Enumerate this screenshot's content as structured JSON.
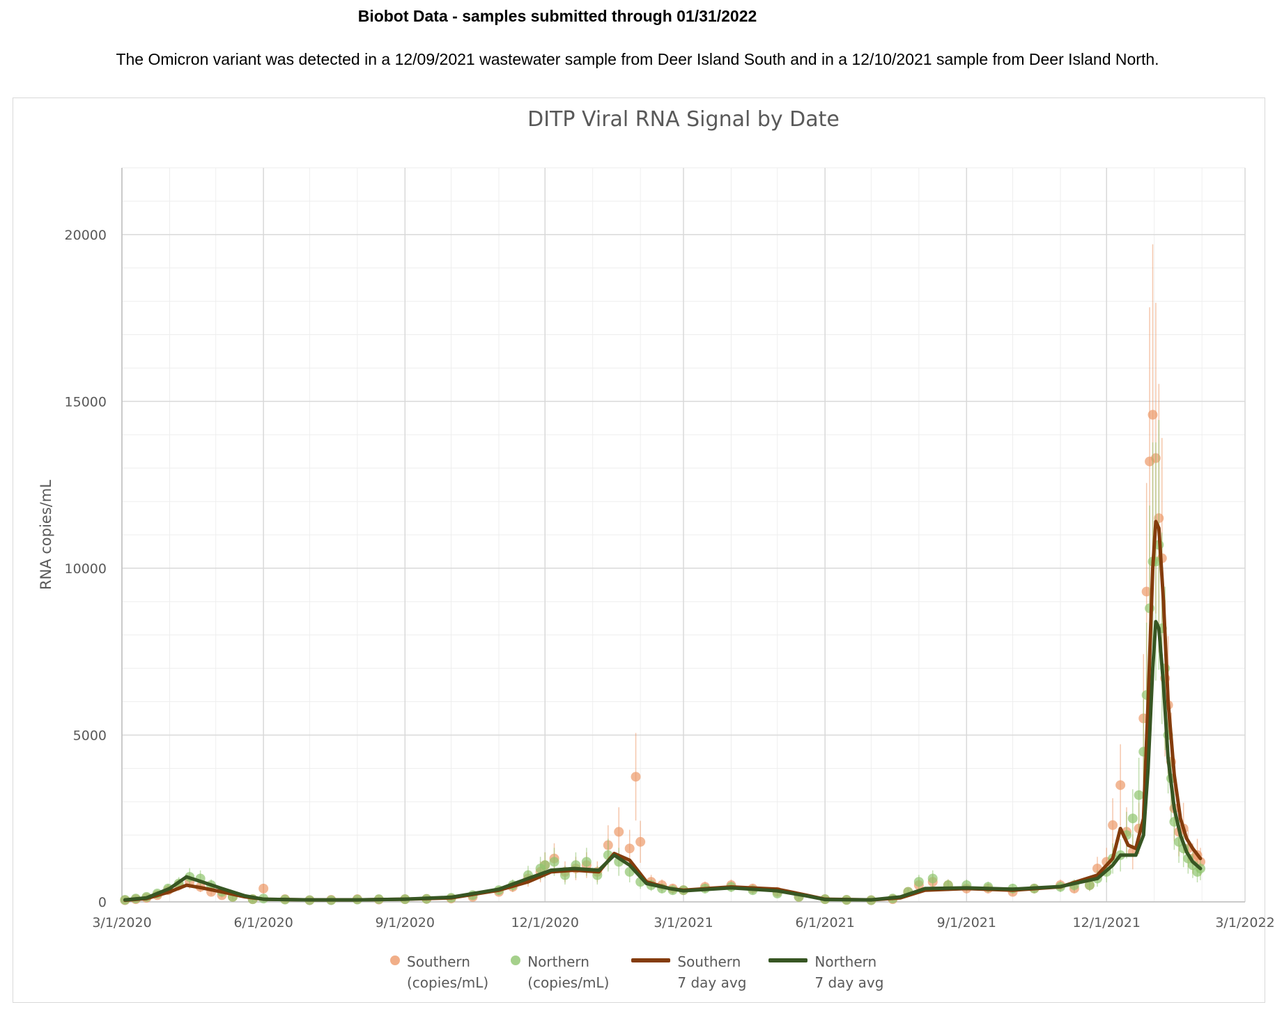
{
  "header": {
    "title": "Biobot Data - samples submitted through 01/31/2022",
    "note": "The Omicron variant was detected in a 12/09/2021 wastewater sample from Deer Island South and in a 12/10/2021 sample from Deer Island North."
  },
  "colors": {
    "southern_points": "#ed9a6a",
    "northern_points": "#8fc46e",
    "southern_avg": "#843c0c",
    "northern_avg": "#375623",
    "grid": "#d9d9d9",
    "axis_text": "#595959"
  },
  "legend": {
    "southern_points": {
      "line1": "Southern",
      "line2": "(copies/mL)"
    },
    "northern_points": {
      "line1": "Northern",
      "line2": "(copies/mL)"
    },
    "southern_avg": {
      "line1": "Southern",
      "line2": "7 day avg"
    },
    "northern_avg": {
      "line1": "Northern",
      "line2": "7 day avg"
    }
  },
  "chart_data": {
    "type": "scatter",
    "title": "DITP Viral RNA Signal by Date",
    "xlabel": "",
    "ylabel": "RNA copies/mL",
    "xlim": [
      "2020-03-01",
      "2022-03-01"
    ],
    "ylim": [
      0,
      22000
    ],
    "x_ticks": [
      "3/1/2020",
      "6/1/2020",
      "9/1/2020",
      "12/1/2020",
      "3/1/2021",
      "6/1/2021",
      "9/1/2021",
      "12/1/2021",
      "3/1/2022"
    ],
    "x_tick_dates": [
      "2020-03-01",
      "2020-06-01",
      "2020-09-01",
      "2020-12-01",
      "2021-03-01",
      "2021-06-01",
      "2021-09-01",
      "2021-12-01",
      "2022-03-01"
    ],
    "y_ticks": [
      0,
      5000,
      10000,
      15000,
      20000
    ],
    "grid": true,
    "legend_position": "bottom",
    "series": [
      {
        "name": "Southern (copies/mL)",
        "kind": "points",
        "x": [
          "2020-03-03",
          "2020-03-10",
          "2020-03-17",
          "2020-03-24",
          "2020-03-31",
          "2020-04-07",
          "2020-04-14",
          "2020-04-21",
          "2020-04-28",
          "2020-05-05",
          "2020-05-12",
          "2020-05-25",
          "2020-06-01",
          "2020-06-15",
          "2020-07-01",
          "2020-07-15",
          "2020-08-01",
          "2020-08-15",
          "2020-09-01",
          "2020-09-15",
          "2020-10-01",
          "2020-10-15",
          "2020-11-01",
          "2020-11-10",
          "2020-11-20",
          "2020-11-28",
          "2020-12-01",
          "2020-12-07",
          "2020-12-14",
          "2020-12-21",
          "2020-12-28",
          "2021-01-04",
          "2021-01-11",
          "2021-01-18",
          "2021-01-25",
          "2021-01-29",
          "2021-02-01",
          "2021-02-08",
          "2021-02-15",
          "2021-02-22",
          "2021-03-01",
          "2021-03-15",
          "2021-04-01",
          "2021-04-15",
          "2021-05-01",
          "2021-05-15",
          "2021-06-01",
          "2021-06-15",
          "2021-07-01",
          "2021-07-15",
          "2021-07-25",
          "2021-08-01",
          "2021-08-10",
          "2021-08-20",
          "2021-09-01",
          "2021-09-15",
          "2021-10-01",
          "2021-10-15",
          "2021-11-01",
          "2021-11-10",
          "2021-11-20",
          "2021-11-25",
          "2021-12-01",
          "2021-12-05",
          "2021-12-10",
          "2021-12-14",
          "2021-12-18",
          "2021-12-22",
          "2021-12-25",
          "2021-12-27",
          "2021-12-29",
          "2021-12-31",
          "2022-01-02",
          "2022-01-04",
          "2022-01-06",
          "2022-01-08",
          "2022-01-10",
          "2022-01-12",
          "2022-01-14",
          "2022-01-17",
          "2022-01-20",
          "2022-01-23",
          "2022-01-26",
          "2022-01-29",
          "2022-01-31"
        ],
        "y": [
          50,
          80,
          120,
          200,
          350,
          500,
          600,
          450,
          300,
          200,
          150,
          80,
          400,
          80,
          50,
          60,
          80,
          70,
          80,
          90,
          100,
          150,
          300,
          450,
          700,
          900,
          1100,
          1300,
          900,
          1000,
          1100,
          900,
          1700,
          2100,
          1600,
          3750,
          1800,
          600,
          500,
          400,
          350,
          450,
          500,
          400,
          300,
          150,
          80,
          60,
          50,
          80,
          300,
          500,
          600,
          500,
          400,
          400,
          300,
          400,
          500,
          400,
          500,
          1000,
          1200,
          2300,
          3500,
          2100,
          1500,
          2200,
          5500,
          9300,
          13200,
          14600,
          13300,
          11500,
          10300,
          6700,
          5900,
          4200,
          2800,
          2100,
          2200,
          1600,
          1300,
          1400,
          1200
        ]
      },
      {
        "name": "Northern (copies/mL)",
        "kind": "points",
        "x": [
          "2020-03-03",
          "2020-03-10",
          "2020-03-17",
          "2020-03-24",
          "2020-03-31",
          "2020-04-07",
          "2020-04-14",
          "2020-04-21",
          "2020-04-28",
          "2020-05-05",
          "2020-05-12",
          "2020-05-25",
          "2020-06-01",
          "2020-06-15",
          "2020-07-01",
          "2020-07-15",
          "2020-08-01",
          "2020-08-15",
          "2020-09-01",
          "2020-09-15",
          "2020-10-01",
          "2020-10-15",
          "2020-11-01",
          "2020-11-10",
          "2020-11-20",
          "2020-11-28",
          "2020-12-01",
          "2020-12-07",
          "2020-12-14",
          "2020-12-21",
          "2020-12-28",
          "2021-01-04",
          "2021-01-11",
          "2021-01-18",
          "2021-01-25",
          "2021-02-01",
          "2021-02-08",
          "2021-02-15",
          "2021-02-22",
          "2021-03-01",
          "2021-03-15",
          "2021-04-01",
          "2021-04-15",
          "2021-05-01",
          "2021-05-15",
          "2021-06-01",
          "2021-06-15",
          "2021-07-01",
          "2021-07-15",
          "2021-07-25",
          "2021-08-01",
          "2021-08-10",
          "2021-08-20",
          "2021-09-01",
          "2021-09-15",
          "2021-10-01",
          "2021-10-15",
          "2021-11-01",
          "2021-11-10",
          "2021-11-20",
          "2021-11-25",
          "2021-12-01",
          "2021-12-05",
          "2021-12-10",
          "2021-12-14",
          "2021-12-18",
          "2021-12-22",
          "2021-12-25",
          "2021-12-27",
          "2021-12-29",
          "2021-12-31",
          "2022-01-02",
          "2022-01-04",
          "2022-01-06",
          "2022-01-08",
          "2022-01-10",
          "2022-01-12",
          "2022-01-14",
          "2022-01-17",
          "2022-01-20",
          "2022-01-23",
          "2022-01-26",
          "2022-01-29",
          "2022-01-31"
        ],
        "y": [
          60,
          100,
          150,
          250,
          400,
          550,
          750,
          700,
          500,
          300,
          150,
          80,
          100,
          70,
          50,
          50,
          70,
          80,
          80,
          90,
          120,
          200,
          350,
          500,
          800,
          1000,
          1100,
          1200,
          800,
          1100,
          1200,
          800,
          1400,
          1200,
          900,
          600,
          500,
          400,
          350,
          350,
          400,
          450,
          350,
          250,
          150,
          80,
          60,
          50,
          100,
          300,
          600,
          700,
          500,
          500,
          450,
          400,
          400,
          450,
          500,
          500,
          700,
          900,
          1300,
          1400,
          2000,
          2500,
          3200,
          4500,
          6200,
          8800,
          10200,
          10200,
          10700,
          8200,
          7000,
          5000,
          3700,
          2400,
          1800,
          1600,
          1300,
          1100,
          900,
          1000
        ]
      },
      {
        "name": "Southern 7 day avg",
        "kind": "line",
        "x": [
          "2020-03-03",
          "2020-03-17",
          "2020-04-01",
          "2020-04-12",
          "2020-04-22",
          "2020-05-05",
          "2020-05-20",
          "2020-06-01",
          "2020-07-01",
          "2020-08-01",
          "2020-09-01",
          "2020-10-01",
          "2020-11-01",
          "2020-11-20",
          "2020-12-05",
          "2020-12-20",
          "2021-01-05",
          "2021-01-15",
          "2021-01-25",
          "2021-02-05",
          "2021-02-20",
          "2021-03-01",
          "2021-04-01",
          "2021-05-01",
          "2021-05-20",
          "2021-06-01",
          "2021-07-01",
          "2021-07-20",
          "2021-08-05",
          "2021-09-01",
          "2021-10-01",
          "2021-11-01",
          "2021-11-25",
          "2021-12-05",
          "2021-12-10",
          "2021-12-15",
          "2021-12-20",
          "2021-12-25",
          "2021-12-28",
          "2021-12-31",
          "2022-01-02",
          "2022-01-04",
          "2022-01-07",
          "2022-01-10",
          "2022-01-14",
          "2022-01-18",
          "2022-01-22",
          "2022-01-26",
          "2022-01-31"
        ],
        "y": [
          50,
          100,
          300,
          500,
          420,
          300,
          150,
          80,
          60,
          60,
          80,
          120,
          350,
          600,
          900,
          950,
          900,
          1450,
          1250,
          600,
          400,
          350,
          450,
          380,
          200,
          80,
          60,
          120,
          350,
          400,
          350,
          450,
          800,
          1300,
          2200,
          1700,
          1600,
          2500,
          6000,
          10000,
          11400,
          11200,
          9000,
          6000,
          3800,
          2500,
          1900,
          1600,
          1300
        ]
      },
      {
        "name": "Northern 7 day avg",
        "kind": "line",
        "x": [
          "2020-03-03",
          "2020-03-17",
          "2020-04-01",
          "2020-04-12",
          "2020-04-22",
          "2020-05-05",
          "2020-05-20",
          "2020-06-01",
          "2020-07-01",
          "2020-08-01",
          "2020-09-01",
          "2020-10-01",
          "2020-11-01",
          "2020-11-20",
          "2020-12-05",
          "2020-12-20",
          "2021-01-05",
          "2021-01-15",
          "2021-01-25",
          "2021-02-05",
          "2021-02-20",
          "2021-03-01",
          "2021-04-01",
          "2021-05-01",
          "2021-05-20",
          "2021-06-01",
          "2021-07-01",
          "2021-07-20",
          "2021-08-05",
          "2021-09-01",
          "2021-10-01",
          "2021-11-01",
          "2021-11-25",
          "2021-12-05",
          "2021-12-10",
          "2021-12-15",
          "2021-12-20",
          "2021-12-25",
          "2021-12-28",
          "2021-12-31",
          "2022-01-02",
          "2022-01-04",
          "2022-01-07",
          "2022-01-10",
          "2022-01-14",
          "2022-01-18",
          "2022-01-22",
          "2022-01-26",
          "2022-01-31"
        ],
        "y": [
          60,
          120,
          400,
          750,
          600,
          400,
          180,
          80,
          60,
          60,
          80,
          140,
          380,
          700,
          950,
          1000,
          950,
          1400,
          1100,
          550,
          400,
          330,
          420,
          330,
          180,
          70,
          60,
          150,
          400,
          420,
          380,
          460,
          700,
          1100,
          1400,
          1400,
          1400,
          2000,
          4000,
          7000,
          8400,
          8200,
          6500,
          4300,
          2800,
          2000,
          1500,
          1200,
          1000
        ]
      }
    ]
  }
}
